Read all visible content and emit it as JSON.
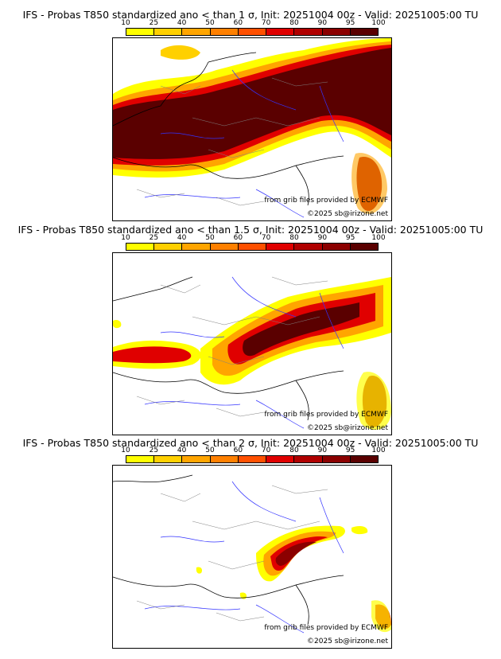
{
  "colors": {
    "bins": [
      "#ffff00",
      "#ffd000",
      "#ffa500",
      "#ff8000",
      "#ff5000",
      "#e00000",
      "#b00000",
      "#8b0000",
      "#5a0000"
    ],
    "coast": "#000000",
    "rivers": "#3333ff",
    "borders": "#808080"
  },
  "colorbar": {
    "ticks": [
      "10",
      "25",
      "40",
      "50",
      "60",
      "70",
      "80",
      "90",
      "95",
      "100"
    ]
  },
  "panels": [
    {
      "title": "IFS - Probas T850  standardized ano < than 1 σ, Init: 20251004 00z - Valid: 20251005:00 TU",
      "sigma": 1,
      "credit_line": "from grib files provided by ECMWF",
      "copyright": "©2025 sb@irizone.net"
    },
    {
      "title": "IFS - Probas T850  standardized ano < than 1.5 σ, Init: 20251004 00z - Valid: 20251005:00 TU",
      "sigma": 1.5,
      "credit_line": "from grib files provided by ECMWF",
      "copyright": "©2025 sb@irizone.net"
    },
    {
      "title": "IFS - Probas T850  standardized ano < than 2 σ, Init: 20251004 00z - Valid: 20251005:00 TU",
      "sigma": 2,
      "credit_line": "from grib files provided by ECMWF",
      "copyright": "©2025 sb@irizone.net"
    }
  ]
}
